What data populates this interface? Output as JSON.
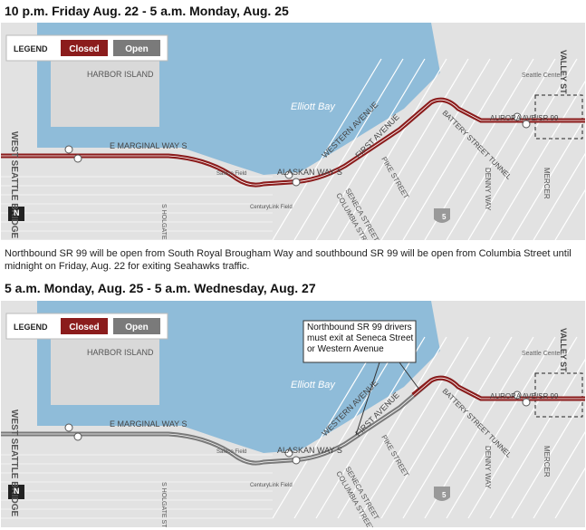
{
  "map": {
    "legend": {
      "title": "LEGEND",
      "closed": "Closed",
      "open": "Open"
    },
    "labels": [
      "WEST SEATTLE BRIDGE",
      "HARBOR ISLAND",
      "Elliott Bay",
      "E MARGINAL WAY S",
      "ALASKAN WAY S",
      "S HOLGATE STREET",
      "Safeco Field",
      "CenturyLink Field",
      "WESTERN AVENUE",
      "FIRST AVENUE",
      "PIKE STREET",
      "SENECA STREET",
      "COLUMBIA STREET",
      "BATTERY STREET TUNNEL",
      "AURORA AVE/SR 99",
      "DENNY WAY",
      "MERCER",
      "VALLEY ST",
      "Seattle Center",
      "5",
      "N"
    ]
  },
  "panels": [
    {
      "title": "10 p.m. Friday Aug. 22 - 5 a.m. Monday, Aug. 25",
      "caption": "Northbound SR 99 will be open from South Royal Brougham Way and southbound SR 99 will be open from Columbia Street until midnight on Friday, Aug. 22 for exiting Seahawks traffic."
    },
    {
      "title": "5 a.m. Monday, Aug. 25 - 5 a.m. Wednesday, Aug. 27",
      "annotation": "Northbound SR 99 drivers must exit at Seneca Street or Western Avenue"
    }
  ]
}
